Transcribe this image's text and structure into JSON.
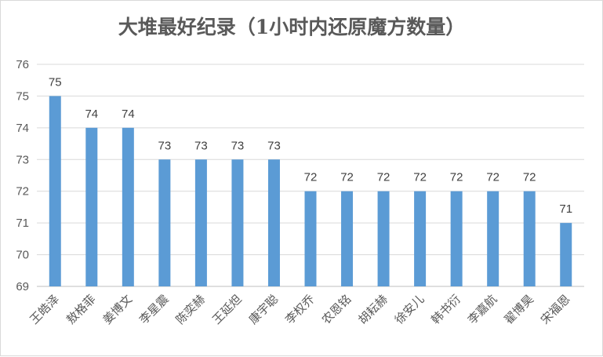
{
  "chart_data": {
    "type": "bar",
    "title": "大堆最好纪录（1小时内还原魔方数量）",
    "categories": [
      "王皓泽",
      "敖格菲",
      "姜博文",
      "李星震",
      "陈奕赫",
      "王延炟",
      "康宇聪",
      "李权乔",
      "农恩铭",
      "胡耘赫",
      "徐安儿",
      "韩书衍",
      "李嘉航",
      "翟博昊",
      "宋福恩"
    ],
    "values": [
      75,
      74,
      74,
      73,
      73,
      73,
      73,
      72,
      72,
      72,
      72,
      72,
      72,
      72,
      71
    ],
    "ylim": [
      69,
      76
    ],
    "yticks": [
      69,
      70,
      71,
      72,
      73,
      74,
      75,
      76
    ],
    "grid": true,
    "bar_color": "#5b9bd5"
  }
}
